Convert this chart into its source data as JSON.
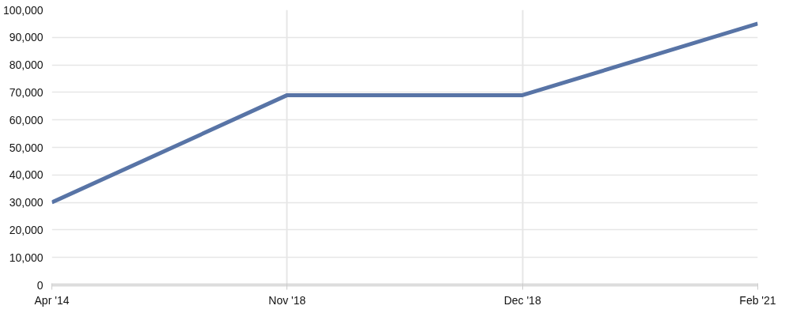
{
  "chart_data": {
    "type": "line",
    "categories": [
      "Apr '14",
      "Nov '18",
      "Dec '18",
      "Feb '21"
    ],
    "series": [
      {
        "color": "#5874a6",
        "values": [
          30000,
          69000,
          69000,
          95000
        ]
      }
    ],
    "ylim": [
      0,
      100000
    ],
    "yticks": [
      {
        "value": 0,
        "label": "0"
      },
      {
        "value": 10000,
        "label": "10,000"
      },
      {
        "value": 20000,
        "label": "20,000"
      },
      {
        "value": 30000,
        "label": "30,000"
      },
      {
        "value": 40000,
        "label": "40,000"
      },
      {
        "value": 50000,
        "label": "50,000"
      },
      {
        "value": 60000,
        "label": "60,000"
      },
      {
        "value": 70000,
        "label": "70,000"
      },
      {
        "value": 80000,
        "label": "80,000"
      },
      {
        "value": 90000,
        "label": "90,000"
      },
      {
        "value": 100000,
        "label": "100,000"
      }
    ],
    "grid": true,
    "marker": "none",
    "line_style": "solid"
  }
}
